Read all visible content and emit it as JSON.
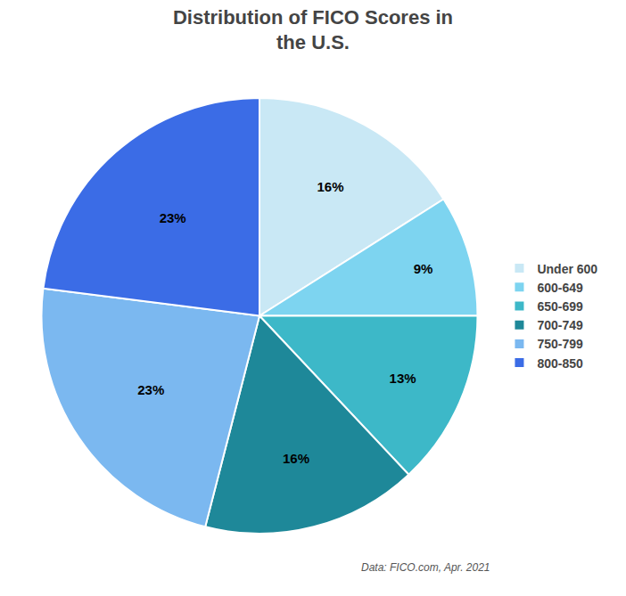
{
  "chart_data": {
    "type": "pie",
    "title": "Distribution of FICO Scores in\nthe U.S.",
    "categories": [
      "Under 600",
      "600-649",
      "650-699",
      "700-749",
      "750-799",
      "800-850"
    ],
    "values": [
      16,
      9,
      13,
      16,
      23,
      23
    ],
    "value_labels": [
      "16%",
      "9%",
      "13%",
      "16%",
      "23%",
      "23%"
    ],
    "colors": [
      "#C9E8F5",
      "#7DD4F0",
      "#3DB8C8",
      "#1E8899",
      "#7BB8F0",
      "#3B6CE6"
    ],
    "data_labels": true,
    "legend": "right",
    "annotations": [
      "Data: FICO.com, Apr. 2021"
    ]
  }
}
